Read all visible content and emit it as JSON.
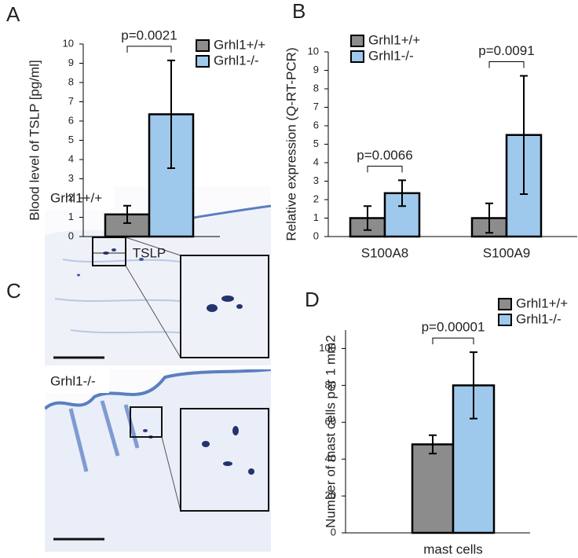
{
  "chart_data": [
    {
      "type": "bar",
      "panel": "A",
      "ylabel": "Blood level of TSLP [pg/ml]",
      "categories": [
        "TSLP"
      ],
      "series": [
        {
          "name": "Grhl1+/+",
          "color": "#8c8c8c",
          "values": [
            1.15
          ],
          "errors": [
            0.45
          ]
        },
        {
          "name": "Grhl1-/-",
          "color": "#9ec9ec",
          "values": [
            6.35
          ],
          "errors": [
            2.8
          ]
        }
      ],
      "annotations": [
        {
          "text": "p=0.0021",
          "category": 0
        }
      ],
      "ylim": [
        0,
        10
      ],
      "yticks": [
        0,
        1,
        2,
        3,
        4,
        5,
        6,
        7,
        8,
        9,
        10
      ]
    },
    {
      "type": "bar",
      "panel": "B",
      "ylabel": "Relative expression (Q-RT-PCR)",
      "categories": [
        "S100A8",
        "S100A9"
      ],
      "series": [
        {
          "name": "Grhl1+/+",
          "color": "#8c8c8c",
          "values": [
            1.0,
            1.0
          ],
          "errors": [
            0.65,
            0.8
          ]
        },
        {
          "name": "Grhl1-/-",
          "color": "#9ec9ec",
          "values": [
            2.35,
            5.5
          ],
          "errors": [
            0.7,
            3.2
          ]
        }
      ],
      "annotations": [
        {
          "text": "p=0.0066",
          "category": 0
        },
        {
          "text": "p=0.0091",
          "category": 1
        }
      ],
      "ylim": [
        0,
        10
      ],
      "yticks": [
        0,
        1,
        2,
        3,
        4,
        5,
        6,
        7,
        8,
        9,
        10
      ]
    },
    {
      "type": "bar",
      "panel": "D",
      "ylabel": "Number of mast cells per 1 mm2",
      "categories": [
        "mast cells"
      ],
      "series": [
        {
          "name": "Grhl1+/+",
          "color": "#8c8c8c",
          "values": [
            48
          ],
          "errors": [
            5
          ]
        },
        {
          "name": "Grhl1-/-",
          "color": "#9ec9ec",
          "values": [
            80
          ],
          "errors": [
            18
          ]
        }
      ],
      "annotations": [
        {
          "text": "p=0.00001",
          "category": 0
        }
      ],
      "ylim": [
        0,
        110
      ],
      "yticks": [
        0,
        20,
        40,
        60,
        80,
        100
      ]
    }
  ],
  "micrographs": {
    "panel": "C",
    "labels": [
      "Grhl1+/+",
      "Grhl1-/-"
    ]
  }
}
